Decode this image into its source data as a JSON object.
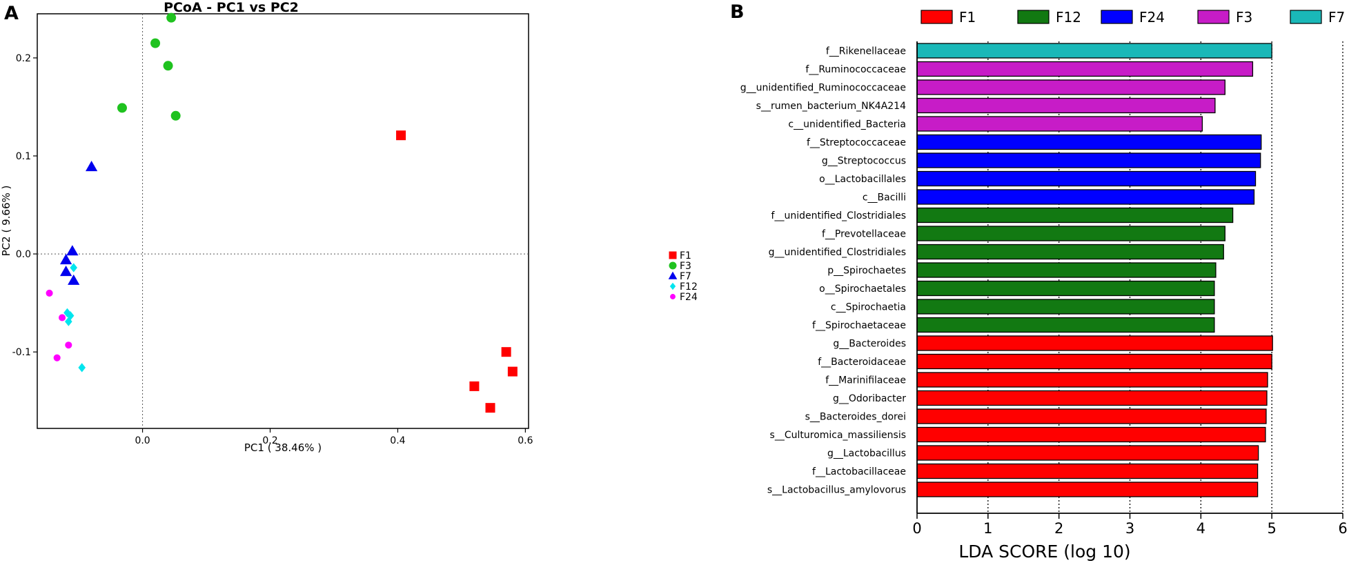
{
  "panel_labels": {
    "a": "A",
    "b": "B"
  },
  "chart_data": [
    {
      "type": "scatter",
      "title": "PCoA - PC1 vs PC2",
      "xlabel": "PC1 ( 38.46% )",
      "ylabel": "PC2 ( 9.66% )",
      "xlim": [
        -0.165,
        0.605
      ],
      "ylim": [
        -0.178,
        0.245
      ],
      "xticks": [
        0.0,
        0.2,
        0.4,
        0.6
      ],
      "xtick_labels": [
        "0.0",
        "0.2",
        "0.4",
        "0.6"
      ],
      "yticks": [
        -0.1,
        0.0,
        0.1,
        0.2
      ],
      "ytick_labels": [
        "-0.1",
        "0.0",
        "0.1",
        "0.2"
      ],
      "reference_lines": {
        "x": 0.0,
        "y": 0.0
      },
      "legend_position": "right",
      "series": [
        {
          "name": "F1",
          "marker": "square",
          "color": "#ff0000",
          "points": [
            [
              0.405,
              0.121
            ],
            [
              0.57,
              -0.1
            ],
            [
              0.58,
              -0.12
            ],
            [
              0.52,
              -0.135
            ],
            [
              0.545,
              -0.157
            ]
          ]
        },
        {
          "name": "F3",
          "marker": "circle",
          "color": "#1fc21f",
          "points": [
            [
              0.045,
              0.241
            ],
            [
              0.02,
              0.215
            ],
            [
              0.04,
              0.192
            ],
            [
              -0.032,
              0.149
            ],
            [
              0.052,
              0.141
            ]
          ]
        },
        {
          "name": "F7",
          "marker": "triangle",
          "color": "#0000ee",
          "points": [
            [
              -0.08,
              0.089
            ],
            [
              -0.11,
              0.003
            ],
            [
              -0.12,
              -0.006
            ],
            [
              -0.12,
              -0.018
            ],
            [
              -0.108,
              -0.027
            ]
          ]
        },
        {
          "name": "F12",
          "marker": "diamond",
          "color": "#00e5ee",
          "points": [
            [
              -0.108,
              -0.014
            ],
            [
              -0.118,
              -0.06
            ],
            [
              -0.113,
              -0.063
            ],
            [
              -0.116,
              -0.069
            ],
            [
              -0.095,
              -0.116
            ]
          ]
        },
        {
          "name": "F24",
          "marker": "circle-small",
          "color": "#ff00ff",
          "points": [
            [
              -0.146,
              -0.04
            ],
            [
              -0.126,
              -0.065
            ],
            [
              -0.116,
              -0.093
            ],
            [
              -0.134,
              -0.106
            ]
          ]
        }
      ]
    },
    {
      "type": "bar",
      "orientation": "horizontal",
      "xlabel": "LDA SCORE (log 10)",
      "xlim": [
        0,
        6
      ],
      "xticks": [
        0,
        1,
        2,
        3,
        4,
        5,
        6
      ],
      "xtick_labels": [
        "0",
        "1",
        "2",
        "3",
        "4",
        "5",
        "6"
      ],
      "legend_position": "top",
      "groups": [
        {
          "name": "F1",
          "color": "#ff0000"
        },
        {
          "name": "F12",
          "color": "#127912"
        },
        {
          "name": "F24",
          "color": "#0000ff"
        },
        {
          "name": "F3",
          "color": "#c71cc7"
        },
        {
          "name": "F7",
          "color": "#1ab8b8"
        }
      ],
      "bars": [
        {
          "label": "f__Rikenellaceae",
          "value": 5.0,
          "group": "F7"
        },
        {
          "label": "f__Ruminococcaceae",
          "value": 4.73,
          "group": "F3"
        },
        {
          "label": "g__unidentified_Ruminococcaceae",
          "value": 4.34,
          "group": "F3"
        },
        {
          "label": "s__rumen_bacterium_NK4A214",
          "value": 4.2,
          "group": "F3"
        },
        {
          "label": "c__unidentified_Bacteria",
          "value": 4.02,
          "group": "F3"
        },
        {
          "label": "f__Streptococcaceae",
          "value": 4.85,
          "group": "F24"
        },
        {
          "label": "g__Streptococcus",
          "value": 4.84,
          "group": "F24"
        },
        {
          "label": "o__Lactobacillales",
          "value": 4.77,
          "group": "F24"
        },
        {
          "label": "c__Bacilli",
          "value": 4.75,
          "group": "F24"
        },
        {
          "label": "f__unidentified_Clostridiales",
          "value": 4.45,
          "group": "F12"
        },
        {
          "label": "f__Prevotellaceae",
          "value": 4.34,
          "group": "F12"
        },
        {
          "label": "g__unidentified_Clostridiales",
          "value": 4.32,
          "group": "F12"
        },
        {
          "label": "p__Spirochaetes",
          "value": 4.21,
          "group": "F12"
        },
        {
          "label": "o__Spirochaetales",
          "value": 4.19,
          "group": "F12"
        },
        {
          "label": "c__Spirochaetia",
          "value": 4.19,
          "group": "F12"
        },
        {
          "label": "f__Spirochaetaceae",
          "value": 4.19,
          "group": "F12"
        },
        {
          "label": "g__Bacteroides",
          "value": 5.01,
          "group": "F1"
        },
        {
          "label": "f__Bacteroidaceae",
          "value": 5.0,
          "group": "F1"
        },
        {
          "label": "f__Marinifilaceae",
          "value": 4.94,
          "group": "F1"
        },
        {
          "label": "g__Odoribacter",
          "value": 4.93,
          "group": "F1"
        },
        {
          "label": "s__Bacteroides_dorei",
          "value": 4.92,
          "group": "F1"
        },
        {
          "label": "s__Culturomica_massiliensis",
          "value": 4.91,
          "group": "F1"
        },
        {
          "label": "g__Lactobacillus",
          "value": 4.81,
          "group": "F1"
        },
        {
          "label": "f__Lactobacillaceae",
          "value": 4.8,
          "group": "F1"
        },
        {
          "label": "s__Lactobacillus_amylovorus",
          "value": 4.8,
          "group": "F1"
        }
      ]
    }
  ]
}
